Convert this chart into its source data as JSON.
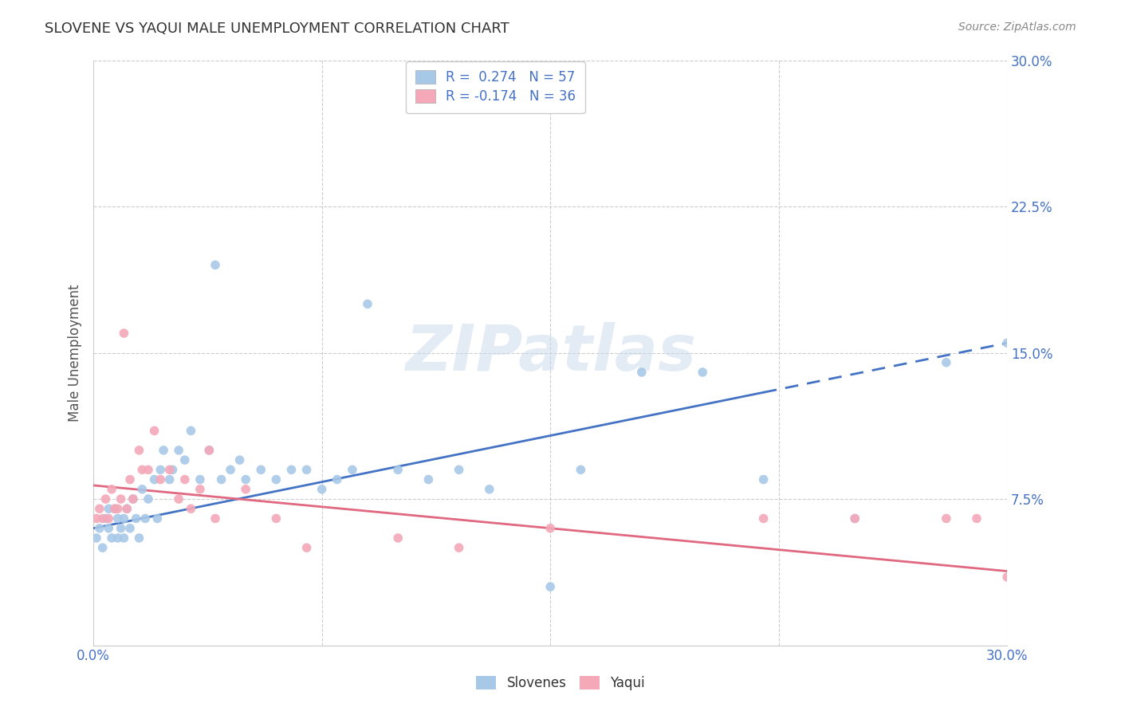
{
  "title": "SLOVENE VS YAQUI MALE UNEMPLOYMENT CORRELATION CHART",
  "source": "Source: ZipAtlas.com",
  "ylabel": "Male Unemployment",
  "xlim": [
    0.0,
    0.3
  ],
  "ylim": [
    0.0,
    0.3
  ],
  "ytick_vals": [
    0.0,
    0.075,
    0.15,
    0.225,
    0.3
  ],
  "xtick_vals": [
    0.0,
    0.075,
    0.15,
    0.225,
    0.3
  ],
  "ytick_labels": [
    "",
    "7.5%",
    "15.0%",
    "22.5%",
    "30.0%"
  ],
  "xtick_labels": [
    "0.0%",
    "",
    "",
    "",
    "30.0%"
  ],
  "slovene_color": "#a8c8e8",
  "yaqui_color": "#f4a8b8",
  "slovene_line_color": "#4472c4",
  "yaqui_line_color": "#e06880",
  "background_color": "#ffffff",
  "grid_color": "#cccccc",
  "R_slovene": 0.274,
  "N_slovene": 57,
  "R_yaqui": -0.174,
  "N_yaqui": 36,
  "slovene_line_x0": 0.0,
  "slovene_line_y0": 0.06,
  "slovene_line_x1": 0.3,
  "slovene_line_y1": 0.155,
  "slovene_line_solid_end": 0.22,
  "yaqui_line_x0": 0.0,
  "yaqui_line_y0": 0.082,
  "yaqui_line_x1": 0.3,
  "yaqui_line_y1": 0.038,
  "watermark_text": "ZIPatlas",
  "legend_label_slovene": "R =  0.274   N = 57",
  "legend_label_yaqui": "R = -0.174   N = 36",
  "slovene_scatter_x": [
    0.001,
    0.002,
    0.003,
    0.004,
    0.005,
    0.005,
    0.006,
    0.007,
    0.008,
    0.008,
    0.009,
    0.01,
    0.01,
    0.011,
    0.012,
    0.013,
    0.014,
    0.015,
    0.016,
    0.017,
    0.018,
    0.02,
    0.021,
    0.022,
    0.023,
    0.025,
    0.026,
    0.028,
    0.03,
    0.032,
    0.035,
    0.038,
    0.04,
    0.042,
    0.045,
    0.048,
    0.05,
    0.055,
    0.06,
    0.065,
    0.07,
    0.075,
    0.08,
    0.085,
    0.09,
    0.1,
    0.11,
    0.12,
    0.13,
    0.15,
    0.16,
    0.18,
    0.2,
    0.22,
    0.25,
    0.28,
    0.3
  ],
  "slovene_scatter_y": [
    0.055,
    0.06,
    0.05,
    0.065,
    0.06,
    0.07,
    0.055,
    0.07,
    0.055,
    0.065,
    0.06,
    0.065,
    0.055,
    0.07,
    0.06,
    0.075,
    0.065,
    0.055,
    0.08,
    0.065,
    0.075,
    0.085,
    0.065,
    0.09,
    0.1,
    0.085,
    0.09,
    0.1,
    0.095,
    0.11,
    0.085,
    0.1,
    0.195,
    0.085,
    0.09,
    0.095,
    0.085,
    0.09,
    0.085,
    0.09,
    0.09,
    0.08,
    0.085,
    0.09,
    0.175,
    0.09,
    0.085,
    0.09,
    0.08,
    0.03,
    0.09,
    0.14,
    0.14,
    0.085,
    0.065,
    0.145,
    0.155
  ],
  "yaqui_scatter_x": [
    0.001,
    0.002,
    0.003,
    0.004,
    0.005,
    0.006,
    0.007,
    0.008,
    0.009,
    0.01,
    0.011,
    0.012,
    0.013,
    0.015,
    0.016,
    0.018,
    0.02,
    0.022,
    0.025,
    0.028,
    0.03,
    0.032,
    0.035,
    0.038,
    0.04,
    0.05,
    0.06,
    0.07,
    0.1,
    0.12,
    0.15,
    0.22,
    0.25,
    0.28,
    0.3,
    0.29
  ],
  "yaqui_scatter_y": [
    0.065,
    0.07,
    0.065,
    0.075,
    0.065,
    0.08,
    0.07,
    0.07,
    0.075,
    0.16,
    0.07,
    0.085,
    0.075,
    0.1,
    0.09,
    0.09,
    0.11,
    0.085,
    0.09,
    0.075,
    0.085,
    0.07,
    0.08,
    0.1,
    0.065,
    0.08,
    0.065,
    0.05,
    0.055,
    0.05,
    0.06,
    0.065,
    0.065,
    0.065,
    0.035,
    0.065
  ]
}
